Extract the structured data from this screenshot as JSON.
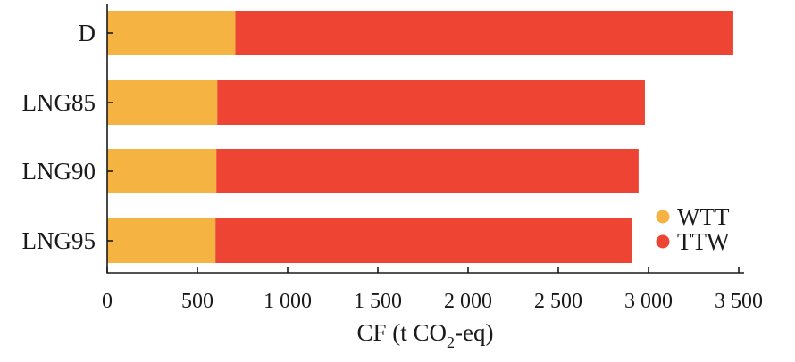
{
  "chart_data": {
    "type": "bar",
    "orientation": "horizontal",
    "stacked": true,
    "categories": [
      "D",
      "LNG85",
      "LNG90",
      "LNG95"
    ],
    "series": [
      {
        "name": "WTT",
        "color": "#f5b342",
        "values": [
          710,
          610,
          605,
          600
        ]
      },
      {
        "name": "TTW",
        "color": "#ee4433",
        "values": [
          2760,
          2370,
          2340,
          2310
        ]
      }
    ],
    "xlabel": {
      "prefix": "CF (t CO",
      "subscript": "2",
      "suffix": "-eq)"
    },
    "xlim": [
      0,
      3500
    ],
    "xticks": [
      0,
      500,
      1000,
      1500,
      2000,
      2500,
      3000,
      3500
    ],
    "xtick_labels": [
      "0",
      "500",
      "1 000",
      "1 500",
      "2 000",
      "2 500",
      "3 000",
      "3 500"
    ],
    "legend_position": "bottom-right",
    "grid": false
  }
}
